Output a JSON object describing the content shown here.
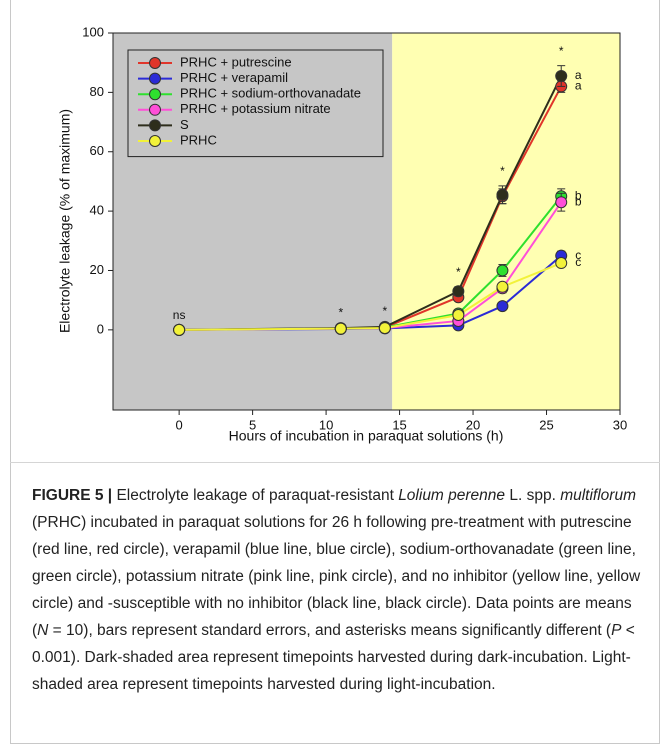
{
  "chart_data": {
    "type": "line",
    "x_label": "Hours of incubation in paraquat solutions (h)",
    "y_label": "Electrolyte leakage (% of maximum)",
    "x": [
      0,
      11,
      14,
      19,
      22,
      26
    ],
    "series": [
      {
        "name": "PRHC + putrescine",
        "color": "#e0352a",
        "values": [
          0,
          0.5,
          0.8,
          11,
          45,
          82
        ],
        "errors": [
          0,
          0.3,
          0.3,
          1.2,
          2.5,
          2
        ],
        "group_label": "a"
      },
      {
        "name": "PRHC + verapamil",
        "color": "#2b2bd6",
        "values": [
          0,
          0.3,
          0.5,
          1.5,
          8,
          25
        ],
        "errors": [
          0,
          0.2,
          0.2,
          0.8,
          1.2,
          1.5
        ],
        "group_label": "c"
      },
      {
        "name": "PRHC + sodium-orthovanadate",
        "color": "#2ee02e",
        "values": [
          0,
          0.5,
          0.8,
          5.5,
          20,
          45
        ],
        "errors": [
          0,
          0.3,
          0.3,
          1,
          2,
          2.5
        ],
        "group_label": "b"
      },
      {
        "name": "PRHC + potassium nitrate",
        "color": "#ff4fd8",
        "values": [
          0,
          0.4,
          0.6,
          3,
          14,
          43
        ],
        "errors": [
          0,
          0.2,
          0.2,
          1,
          1.5,
          3
        ],
        "group_label": "b"
      },
      {
        "name": "S",
        "color": "#2e2e1c",
        "values": [
          0,
          0.6,
          1,
          13,
          45.5,
          85.5
        ],
        "errors": [
          0,
          0.3,
          0.3,
          1.5,
          3,
          3.5
        ],
        "group_label": "a"
      },
      {
        "name": "PRHC",
        "color": "#f2f23a",
        "values": [
          0,
          0.4,
          0.6,
          5,
          14.5,
          22.5
        ],
        "errors": [
          0,
          0.2,
          0.2,
          1,
          1.2,
          1
        ],
        "group_label": "c"
      }
    ],
    "significance": [
      {
        "x": 0,
        "label": "ns"
      },
      {
        "x": 11,
        "label": "*"
      },
      {
        "x": 14,
        "label": "*"
      },
      {
        "x": 19,
        "label": "*"
      },
      {
        "x": 22,
        "label": "*"
      },
      {
        "x": 26,
        "label": "*"
      }
    ],
    "regions": [
      {
        "x_start": -4.5,
        "x_end": 14.5,
        "color": "#c6c6c6"
      },
      {
        "x_start": 14.5,
        "x_end": 30,
        "color": "#ffffb2"
      }
    ],
    "xlim": [
      -4.5,
      30
    ],
    "xticks": [
      0,
      5,
      10,
      15,
      20,
      25,
      30
    ],
    "ylim": [
      -27,
      100
    ],
    "yticks": [
      0,
      20,
      40,
      60,
      80,
      100
    ],
    "legend": "upper left"
  },
  "caption": {
    "parts": [
      "FIGURE 5 |",
      " Electrolyte leakage of paraquat-resistant ",
      "Lolium perenne",
      " L. spp. ",
      "multiflorum",
      " (PRHC) incubated in paraquat solutions for 26 h following pre-treatment with putrescine (red line, red circle), verapamil (blue line, blue circle), sodium-orthovanadate (green line, green circle), potassium nitrate (pink line, pink circle), and no inhibitor (yellow line, yellow circle) and -susceptible with no inhibitor (black line, black circle). Data points are means (",
      "N",
      " = 10), bars represent standard errors, and asterisks means significantly different (",
      "P",
      " < 0.001). Dark-shaded area represent timepoints harvested during dark-incubation. Light-shaded area represent timepoints harvested during light-incubation."
    ]
  }
}
